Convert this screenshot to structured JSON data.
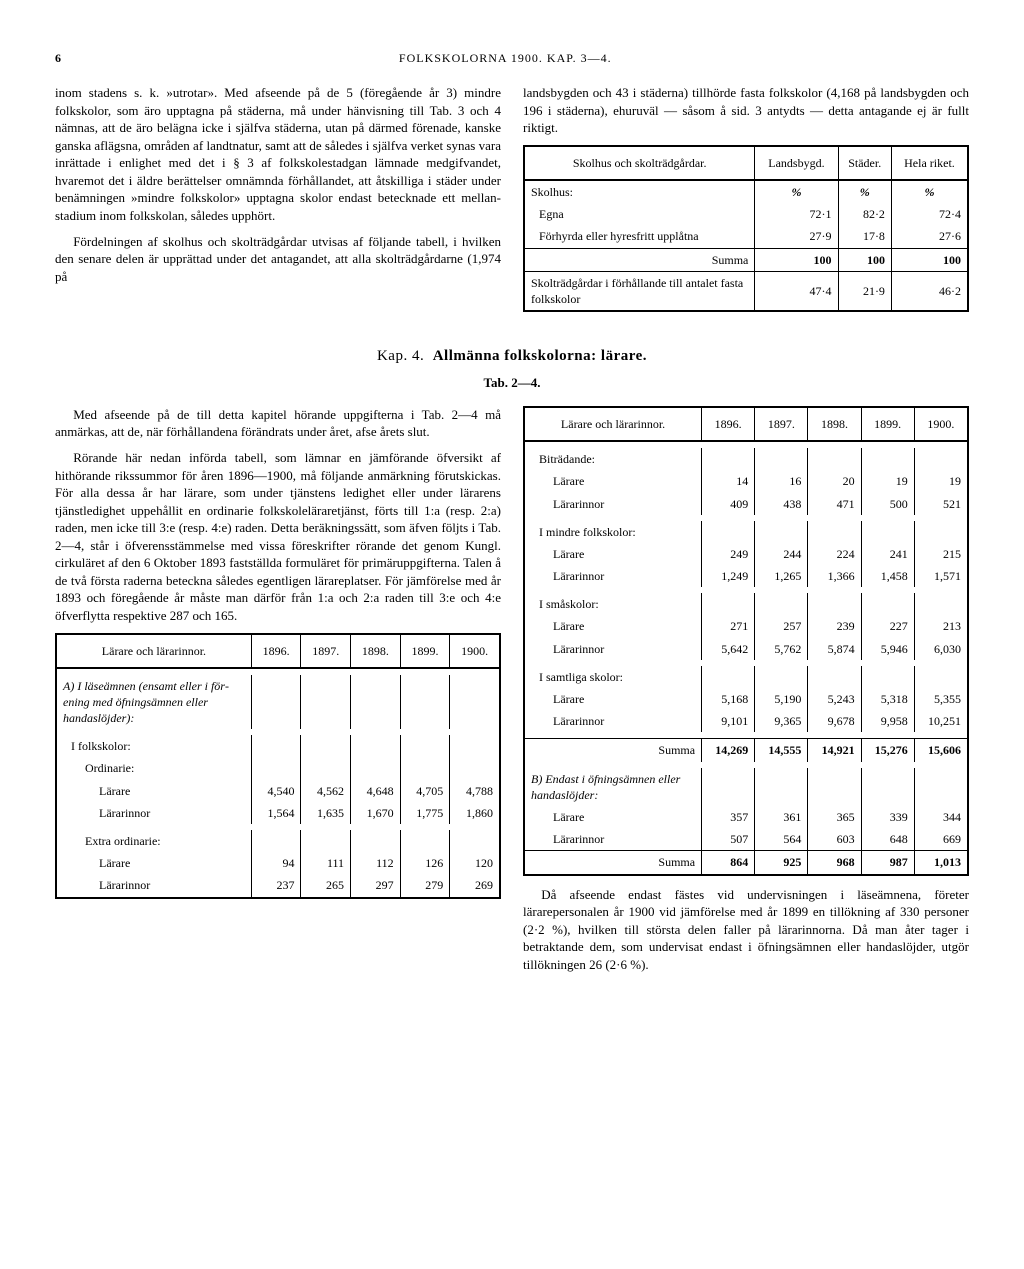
{
  "page_number": "6",
  "running_header": "FOLKSKOLORNA 1900. KAP. 3—4.",
  "top_left_para": "inom stadens s. k. »utrotar». Med afseende på de 5 (före­gående år 3) mindre folkskolor, som äro upptagna på stä­derna, må under hänvisning till Tab. 3 och 4 nämnas, att de äro belägna icke i själfva städerna, utan på därmed förenade, kanske ganska aflägsna, områden af landtnatur, samt att de således i själfva verket synas vara inrättade i enlighet med det i § 3 af folkskolestadgan lämnade med­gifvandet, hvaremot det i äldre berättelser omnämnda för­hållandet, att åtskilliga i städer under benämningen »mindre folkskolor» upptagna skolor endast betecknade ett mellan­stadium inom folkskolan, således upphört.",
  "top_left_para2": "Fördelningen af skolhus och skolträdgårdar utvisas af följande tabell, i hvilken den senare delen är upprättad under det antagandet, att alla skolträdgårdarne (1,974 på",
  "top_right_para": "landsbygden och 43 i städerna) tillhörde fasta folkskolor (4,168 på landsbygden och 196 i städerna), ehuruväl — såsom å sid. 3 antydts — detta antagande ej är fullt riktigt.",
  "table1": {
    "header": [
      "Skolhus och skolträdgårdar.",
      "Lands­bygd.",
      "Städer.",
      "Hela riket."
    ],
    "rows": [
      {
        "label": "Skolhus:",
        "v": [
          "%",
          "%",
          "%"
        ],
        "head": true
      },
      {
        "label": "Egna",
        "v": [
          "72·1",
          "82·2",
          "72·4"
        ],
        "indent": 1
      },
      {
        "label": "Förhyrda eller hyresfritt upplåtna",
        "v": [
          "27·9",
          "17·8",
          "27·6"
        ],
        "indent": 1
      },
      {
        "label": "Summa",
        "v": [
          "100",
          "100",
          "100"
        ],
        "sum": true
      },
      {
        "label": "Skolträdgårdar i förhållande till antalet fasta folkskolor",
        "v": [
          "47·4",
          "21·9",
          "46·2"
        ],
        "indent": 0,
        "top": true
      }
    ]
  },
  "chapter": {
    "prefix": "Kap. 4.",
    "title": "Allmänna folkskolorna: lärare."
  },
  "tab_label": "Tab. 2—4.",
  "mid_left_para1": "Med afseende på de till detta kapitel hörande uppgif­terna i Tab. 2—4 må anmärkas, att de, när förhållandena förändrats under året, afse årets slut.",
  "mid_left_para2": "Rörande här nedan införda tabell, som lämnar en jäm­förande öfversikt af hithörande rikssummor för åren 1896—1900, må följande anmärkning förutskickas. För alla dessa år har lärare, som under tjänstens ledighet eller under lärarens tjänstledighet uppehållit en ordinarie folkskole­läraretjänst, förts till 1:a (resp. 2:a) raden, men icke till 3:e (resp. 4:e) raden. Detta beräkningssätt, som äfven följts i Tab. 2—4, står i öfverensstämmelse med vissa föreskrifter rörande det genom Kungl. cirkuläret af den 6 Oktober 1893 fastställda formuläret för primäruppgifterna. Talen å de två första raderna beteckna således egentligen lärareplatser. För jämförelse med år 1893 och föregående år måste man därför från 1:a och 2:a raden till 3:e och 4:e öfverflytta respektive 287 och 165.",
  "table2": {
    "header": [
      "Lärare och lärarinnor.",
      "1896.",
      "1897.",
      "1898.",
      "1899.",
      "1900."
    ],
    "section_a": "A) I läseämnen (ensamt eller i för­ening med öfningsämnen eller handaslöjder):",
    "sub1": "I folkskolor:",
    "sub2": "Ordinarie:",
    "rows": [
      {
        "label": "Lärare",
        "v": [
          "4,540",
          "4,562",
          "4,648",
          "4,705",
          "4,788"
        ]
      },
      {
        "label": "Lärarinnor",
        "v": [
          "1,564",
          "1,635",
          "1,670",
          "1,775",
          "1,860"
        ]
      }
    ],
    "sub3": "Extra ordinarie:",
    "rows2": [
      {
        "label": "Lärare",
        "v": [
          "94",
          "111",
          "112",
          "126",
          "120"
        ]
      },
      {
        "label": "Lärarinnor",
        "v": [
          "237",
          "265",
          "297",
          "279",
          "269"
        ]
      }
    ]
  },
  "table3": {
    "header": [
      "Lärare och lärarinnor.",
      "1896.",
      "1897.",
      "1898.",
      "1899.",
      "1900."
    ],
    "groups": [
      {
        "title": "Biträdande:",
        "rows": [
          {
            "label": "Lärare",
            "v": [
              "14",
              "16",
              "20",
              "19",
              "19"
            ]
          },
          {
            "label": "Lärarinnor",
            "v": [
              "409",
              "438",
              "471",
              "500",
              "521"
            ]
          }
        ]
      },
      {
        "title": "I mindre folkskolor:",
        "rows": [
          {
            "label": "Lärare",
            "v": [
              "249",
              "244",
              "224",
              "241",
              "215"
            ]
          },
          {
            "label": "Lärarinnor",
            "v": [
              "1,249",
              "1,265",
              "1,366",
              "1,458",
              "1,571"
            ]
          }
        ]
      },
      {
        "title": "I småskolor:",
        "rows": [
          {
            "label": "Lärare",
            "v": [
              "271",
              "257",
              "239",
              "227",
              "213"
            ]
          },
          {
            "label": "Lärarinnor",
            "v": [
              "5,642",
              "5,762",
              "5,874",
              "5,946",
              "6,030"
            ]
          }
        ]
      },
      {
        "title": "I samtliga skolor:",
        "rows": [
          {
            "label": "Lärare",
            "v": [
              "5,168",
              "5,190",
              "5,243",
              "5,318",
              "5,355"
            ]
          },
          {
            "label": "Lärarinnor",
            "v": [
              "9,101",
              "9,365",
              "9,678",
              "9,958",
              "10,251"
            ]
          }
        ]
      }
    ],
    "summa": [
      "14,269",
      "14,555",
      "14,921",
      "15,276",
      "15,606"
    ],
    "section_b": "B) Endast i öfningsämnen eller handaslöjder:",
    "rows_b": [
      {
        "label": "Lärare",
        "v": [
          "357",
          "361",
          "365",
          "339",
          "344"
        ]
      },
      {
        "label": "Lärarinnor",
        "v": [
          "507",
          "564",
          "603",
          "648",
          "669"
        ]
      }
    ],
    "summa_b": [
      "864",
      "925",
      "968",
      "987",
      "1,013"
    ]
  },
  "bottom_right_para": "Då afseende endast fästes vid undervisningen i läse­ämnena, företer lärarepersonalen år 1900 vid jämförelse med år 1899 en tillökning af 330 personer (2·2 %), hvil­ken till största delen faller på lärarinnorna. Då man åter tager i betraktande dem, som undervisat endast i öfnings­ämnen eller handaslöjder, utgör tillökningen 26 (2·6 %)."
}
